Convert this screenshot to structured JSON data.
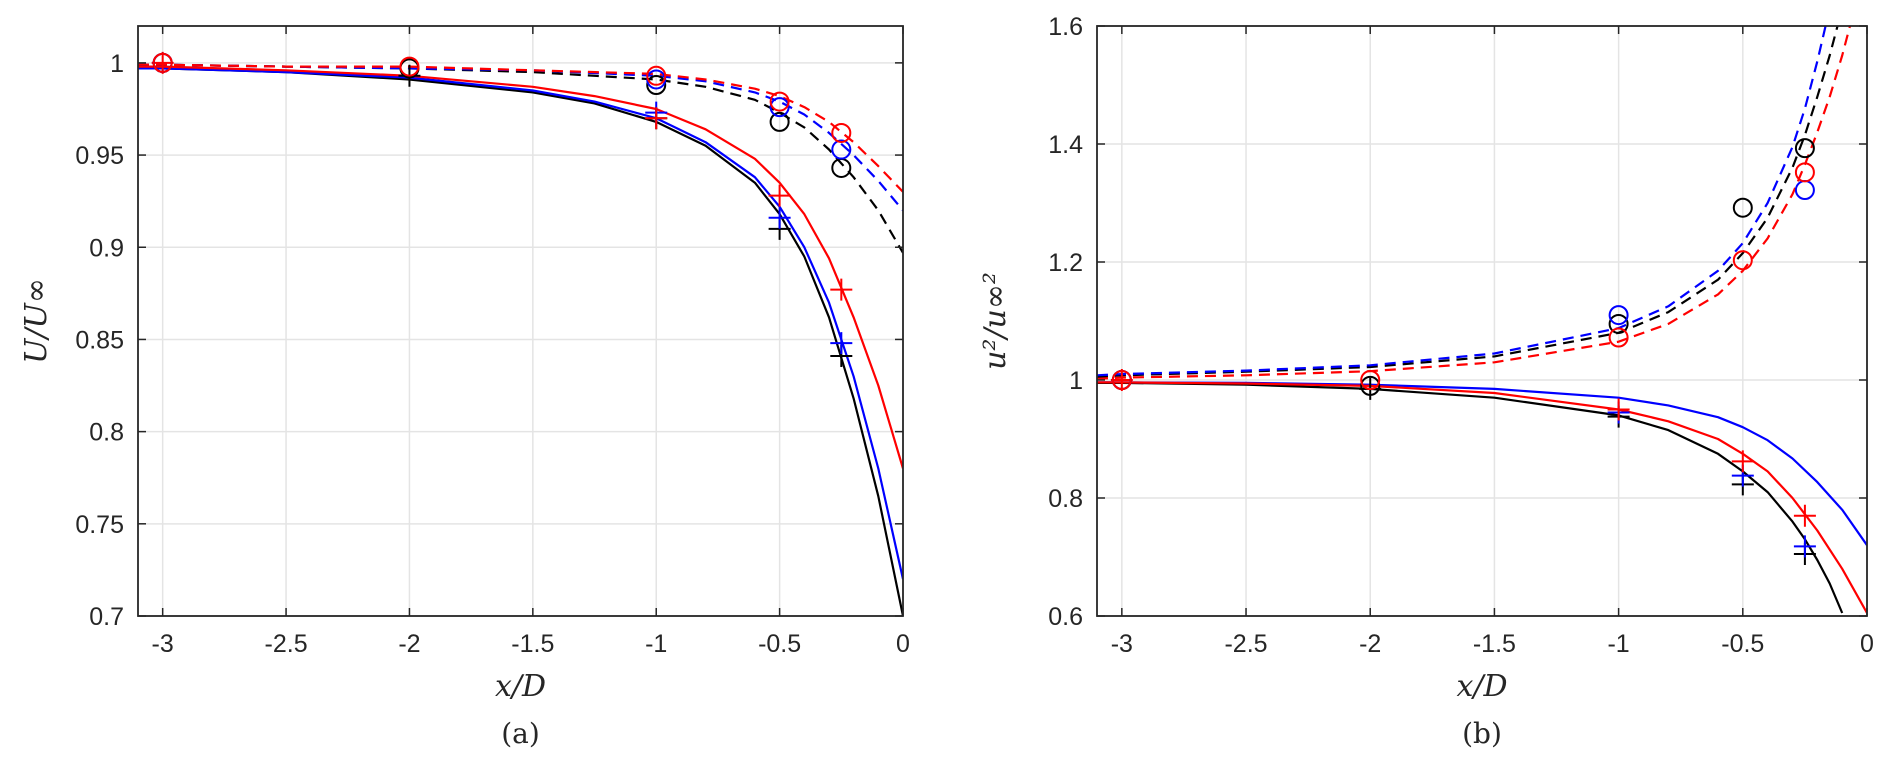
{
  "chart_data": [
    {
      "type": "line",
      "caption": "(a)",
      "xlabel": "x/D",
      "ylabel": "U/U∞",
      "xlim": [
        -3.1,
        0
      ],
      "ylim": [
        0.7,
        1.02
      ],
      "grid": true,
      "xticks": [
        -3,
        -2.5,
        -2,
        -1.5,
        -1,
        -0.5,
        0
      ],
      "xtick_labels": [
        "-3",
        "-2.5",
        "-2",
        "-1.5",
        "-1",
        "-0.5",
        "0"
      ],
      "yticks": [
        0.7,
        0.75,
        0.8,
        0.85,
        0.9,
        0.95,
        1
      ],
      "ytick_labels": [
        "0.7",
        "0.75",
        "0.8",
        "0.85",
        "0.9",
        "0.95",
        "1"
      ],
      "series": [
        {
          "color": "#000000",
          "style": "solid",
          "x": [
            -3.1,
            -3.0,
            -2.5,
            -2.0,
            -1.5,
            -1.25,
            -1.0,
            -0.8,
            -0.6,
            -0.5,
            -0.4,
            -0.3,
            -0.2,
            -0.1,
            0
          ],
          "y": [
            0.997,
            0.997,
            0.995,
            0.991,
            0.984,
            0.978,
            0.968,
            0.955,
            0.935,
            0.918,
            0.895,
            0.862,
            0.818,
            0.765,
            0.7
          ]
        },
        {
          "color": "#0000ff",
          "style": "solid",
          "x": [
            -3.1,
            -3.0,
            -2.5,
            -2.0,
            -1.5,
            -1.25,
            -1.0,
            -0.8,
            -0.6,
            -0.5,
            -0.4,
            -0.3,
            -0.2,
            -0.1,
            0
          ],
          "y": [
            0.997,
            0.997,
            0.995,
            0.992,
            0.985,
            0.979,
            0.97,
            0.957,
            0.938,
            0.922,
            0.9,
            0.87,
            0.83,
            0.78,
            0.72
          ]
        },
        {
          "color": "#ff0000",
          "style": "solid",
          "x": [
            -3.1,
            -3.0,
            -2.5,
            -2.0,
            -1.5,
            -1.25,
            -1.0,
            -0.8,
            -0.6,
            -0.5,
            -0.4,
            -0.3,
            -0.2,
            -0.1,
            0
          ],
          "y": [
            0.998,
            0.998,
            0.996,
            0.993,
            0.987,
            0.982,
            0.975,
            0.964,
            0.948,
            0.935,
            0.918,
            0.894,
            0.862,
            0.825,
            0.78
          ]
        },
        {
          "color": "#000000",
          "style": "dashed",
          "x": [
            -3.1,
            -3.0,
            -2.5,
            -2.0,
            -1.5,
            -1.0,
            -0.8,
            -0.6,
            -0.5,
            -0.4,
            -0.3,
            -0.2,
            -0.1,
            0
          ],
          "y": [
            0.999,
            0.999,
            0.998,
            0.997,
            0.995,
            0.991,
            0.987,
            0.98,
            0.973,
            0.965,
            0.953,
            0.938,
            0.92,
            0.897
          ]
        },
        {
          "color": "#0000ff",
          "style": "dashed",
          "x": [
            -3.1,
            -3.0,
            -2.5,
            -2.0,
            -1.5,
            -1.0,
            -0.8,
            -0.6,
            -0.5,
            -0.4,
            -0.3,
            -0.2,
            -0.1,
            0
          ],
          "y": [
            0.999,
            0.999,
            0.998,
            0.997,
            0.996,
            0.993,
            0.99,
            0.984,
            0.979,
            0.972,
            0.962,
            0.95,
            0.936,
            0.92
          ]
        },
        {
          "color": "#ff0000",
          "style": "dashed",
          "x": [
            -3.1,
            -3.0,
            -2.5,
            -2.0,
            -1.5,
            -1.0,
            -0.8,
            -0.6,
            -0.5,
            -0.4,
            -0.3,
            -0.2,
            -0.1,
            0
          ],
          "y": [
            0.999,
            0.999,
            0.998,
            0.998,
            0.996,
            0.994,
            0.991,
            0.986,
            0.982,
            0.976,
            0.968,
            0.957,
            0.944,
            0.93
          ]
        }
      ],
      "markers": [
        {
          "shape": "plus",
          "color": "#000000",
          "x": [
            -2,
            -1,
            -0.5,
            -0.25
          ],
          "y": [
            0.993,
            0.97,
            0.91,
            0.841
          ]
        },
        {
          "shape": "plus",
          "color": "#0000ff",
          "x": [
            -1,
            -0.5,
            -0.25
          ],
          "y": [
            0.973,
            0.916,
            0.848
          ]
        },
        {
          "shape": "plus",
          "color": "#ff0000",
          "x": [
            -3,
            -1,
            -0.5,
            -0.25
          ],
          "y": [
            1.0,
            0.97,
            0.928,
            0.877
          ]
        },
        {
          "shape": "circle",
          "color": "#000000",
          "x": [
            -3,
            -2,
            -1,
            -0.5,
            -0.25
          ],
          "y": [
            1.0,
            0.997,
            0.988,
            0.968,
            0.943
          ]
        },
        {
          "shape": "circle",
          "color": "#0000ff",
          "x": [
            -3,
            -1,
            -0.5,
            -0.25
          ],
          "y": [
            1.0,
            0.991,
            0.976,
            0.953
          ]
        },
        {
          "shape": "circle",
          "color": "#ff0000",
          "x": [
            -3,
            -2,
            -1,
            -0.5,
            -0.25
          ],
          "y": [
            1.0,
            0.998,
            0.993,
            0.979,
            0.962
          ]
        }
      ]
    },
    {
      "type": "line",
      "caption": "(b)",
      "xlabel": "x/D",
      "ylabel": "u²/u∞²",
      "xlim": [
        -3.1,
        0
      ],
      "ylim": [
        0.6,
        1.6
      ],
      "grid": true,
      "xticks": [
        -3,
        -2.5,
        -2,
        -1.5,
        -1,
        -0.5,
        0
      ],
      "xtick_labels": [
        "-3",
        "-2.5",
        "-2",
        "-1.5",
        "-1",
        "-0.5",
        "0"
      ],
      "yticks": [
        0.6,
        0.8,
        1,
        1.2,
        1.4,
        1.6
      ],
      "ytick_labels": [
        "0.6",
        "0.8",
        "1",
        "1.2",
        "1.4",
        "1.6"
      ],
      "series": [
        {
          "color": "#000000",
          "style": "solid",
          "x": [
            -3.1,
            -3.0,
            -2.5,
            -2.0,
            -1.5,
            -1.0,
            -0.8,
            -0.6,
            -0.5,
            -0.4,
            -0.3,
            -0.25,
            -0.2,
            -0.15,
            -0.1
          ],
          "y": [
            0.995,
            0.995,
            0.992,
            0.985,
            0.97,
            0.94,
            0.915,
            0.875,
            0.845,
            0.81,
            0.76,
            0.73,
            0.695,
            0.655,
            0.605
          ]
        },
        {
          "color": "#0000ff",
          "style": "solid",
          "x": [
            -3.1,
            -3.0,
            -2.5,
            -2.0,
            -1.5,
            -1.0,
            -0.8,
            -0.6,
            -0.5,
            -0.4,
            -0.3,
            -0.2,
            -0.1,
            0
          ],
          "y": [
            0.996,
            0.996,
            0.995,
            0.992,
            0.985,
            0.97,
            0.957,
            0.937,
            0.92,
            0.898,
            0.867,
            0.827,
            0.78,
            0.72
          ]
        },
        {
          "color": "#ff0000",
          "style": "solid",
          "x": [
            -3.1,
            -3.0,
            -2.5,
            -2.0,
            -1.5,
            -1.0,
            -0.8,
            -0.6,
            -0.5,
            -0.4,
            -0.3,
            -0.2,
            -0.1,
            0
          ],
          "y": [
            0.996,
            0.996,
            0.994,
            0.99,
            0.978,
            0.95,
            0.93,
            0.9,
            0.875,
            0.845,
            0.8,
            0.745,
            0.68,
            0.605
          ]
        },
        {
          "color": "#000000",
          "style": "dashed",
          "x": [
            -3.1,
            -3.0,
            -2.5,
            -2.0,
            -1.5,
            -1.0,
            -0.8,
            -0.6,
            -0.5,
            -0.4,
            -0.3,
            -0.25,
            -0.2,
            -0.15,
            -0.1
          ],
          "y": [
            1.005,
            1.008,
            1.014,
            1.022,
            1.04,
            1.08,
            1.115,
            1.17,
            1.215,
            1.275,
            1.36,
            1.415,
            1.48,
            1.55,
            1.63
          ]
        },
        {
          "color": "#0000ff",
          "style": "dashed",
          "x": [
            -3.1,
            -3.0,
            -2.5,
            -2.0,
            -1.5,
            -1.0,
            -0.8,
            -0.6,
            -0.5,
            -0.4,
            -0.3,
            -0.25,
            -0.2,
            -0.15
          ],
          "y": [
            1.008,
            1.01,
            1.016,
            1.025,
            1.045,
            1.088,
            1.125,
            1.185,
            1.232,
            1.3,
            1.395,
            1.46,
            1.54,
            1.63
          ]
        },
        {
          "color": "#ff0000",
          "style": "dashed",
          "x": [
            -3.1,
            -3.0,
            -2.5,
            -2.0,
            -1.5,
            -1.0,
            -0.8,
            -0.6,
            -0.5,
            -0.4,
            -0.3,
            -0.25,
            -0.2,
            -0.15,
            -0.1,
            -0.05
          ],
          "y": [
            1.002,
            1.004,
            1.008,
            1.015,
            1.03,
            1.065,
            1.095,
            1.145,
            1.185,
            1.24,
            1.315,
            1.365,
            1.42,
            1.48,
            1.55,
            1.63
          ]
        }
      ],
      "markers": [
        {
          "shape": "plus",
          "color": "#000000",
          "x": [
            -2,
            -1,
            -0.5,
            -0.25
          ],
          "y": [
            0.985,
            0.938,
            0.823,
            0.705
          ]
        },
        {
          "shape": "plus",
          "color": "#0000ff",
          "x": [
            -1,
            -0.5,
            -0.25
          ],
          "y": [
            0.945,
            0.838,
            0.718
          ]
        },
        {
          "shape": "plus",
          "color": "#ff0000",
          "x": [
            -3,
            -1,
            -0.5,
            -0.25
          ],
          "y": [
            1.0,
            0.95,
            0.862,
            0.77
          ]
        },
        {
          "shape": "circle",
          "color": "#000000",
          "x": [
            -3,
            -2,
            -1,
            -0.5,
            -0.25
          ],
          "y": [
            1.0,
            0.99,
            1.095,
            1.292,
            1.393
          ]
        },
        {
          "shape": "circle",
          "color": "#0000ff",
          "x": [
            -3,
            -1,
            -0.25
          ],
          "y": [
            1.0,
            1.11,
            1.322
          ]
        },
        {
          "shape": "circle",
          "color": "#ff0000",
          "x": [
            -3,
            -2,
            -1,
            -0.5,
            -0.25
          ],
          "y": [
            1.0,
            1.0,
            1.072,
            1.203,
            1.352
          ]
        }
      ]
    }
  ]
}
